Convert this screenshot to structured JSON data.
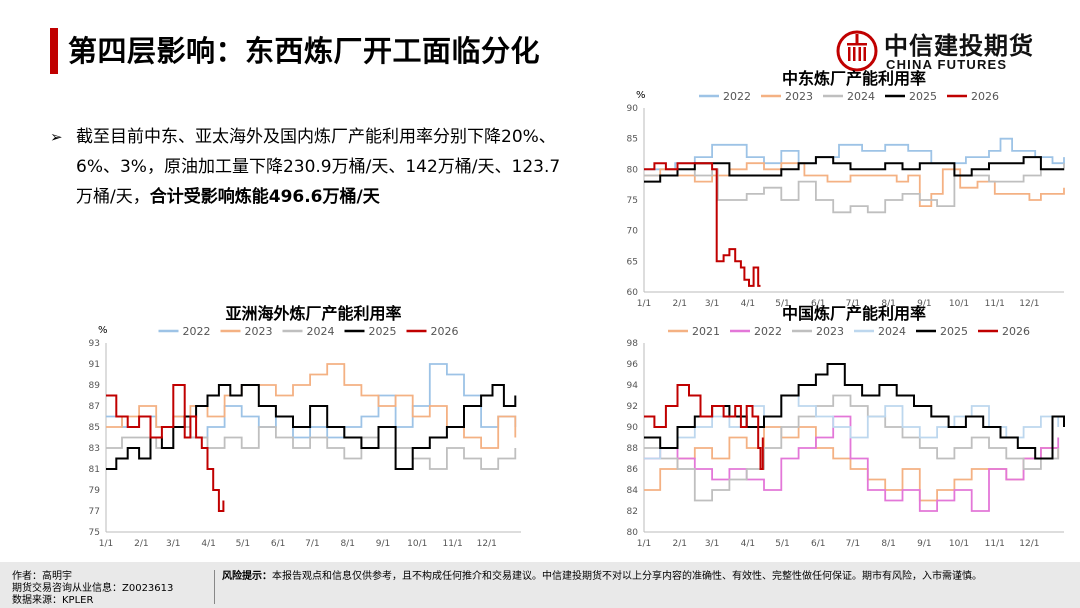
{
  "title": "第四层影响：东西炼厂开工面临分化",
  "logo": {
    "cn": "中信建投期货",
    "en": "CHINA FUTURES"
  },
  "bullet": {
    "normal": "截至目前中东、亚太海外及国内炼厂产能利用率分别下降20%、6%、3%，原油加工量下降230.9万桶/天、142万桶/天、123.7万桶/天，",
    "bold": "合计受影响炼能496.6万桶/天"
  },
  "footer": {
    "author": "作者：高明宇",
    "license": "期货交易咨询从业信息：Z0023613",
    "source": "数据来源：KPLER",
    "risk_label": "风险提示：",
    "risk_text": "本报告观点和信息仅供参考，且不构成任何推介和交易建议。中信建投期货不对以上分享内容的准确性、有效性、完整性做任何保证。期市有风险，入市需谨慎。"
  },
  "colors": {
    "accent": "#c00000",
    "2021": "#f4b183",
    "2022": "#9dc3e6",
    "2023": "#f4b183",
    "2024": "#bfbfbf",
    "2025": "#000000",
    "2026": "#c00000",
    "2022_cn": "#e377d8",
    "2024_cn": "#bdd7ee"
  },
  "chart_data": [
    {
      "id": "middle_east",
      "type": "line",
      "title": "中东炼厂产能利用率",
      "ylabel": "%",
      "ylim": [
        60,
        90
      ],
      "yticks": [
        60,
        65,
        70,
        75,
        80,
        85,
        90
      ],
      "x_ticks": [
        "1/1",
        "2/1",
        "3/1",
        "4/1",
        "5/1",
        "6/1",
        "7/1",
        "8/1",
        "9/1",
        "10/1",
        "11/1",
        "12/1"
      ],
      "series": [
        {
          "name": "2022",
          "color": "#9dc3e6",
          "x": [
            1,
            15,
            28,
            45,
            55,
            60,
            72,
            90,
            105,
            120,
            135,
            150,
            170,
            190,
            210,
            230,
            250,
            265,
            280,
            300,
            310,
            320,
            340,
            355,
            365
          ],
          "values": [
            80,
            80,
            81,
            82,
            82,
            84,
            84,
            82,
            81,
            83,
            81,
            82,
            84,
            83,
            84,
            83,
            81,
            81,
            82,
            83,
            85,
            83,
            82,
            81,
            82
          ]
        },
        {
          "name": "2023",
          "color": "#f4b183",
          "x": [
            1,
            15,
            30,
            45,
            60,
            75,
            90,
            105,
            120,
            140,
            160,
            180,
            200,
            220,
            230,
            240,
            250,
            260,
            275,
            290,
            305,
            320,
            335,
            345,
            365
          ],
          "values": [
            79,
            80,
            79,
            78,
            79,
            80,
            81,
            80,
            81,
            79,
            78,
            79,
            79,
            78,
            79,
            74,
            76,
            80,
            77,
            78,
            76,
            76,
            75,
            76,
            77
          ]
        },
        {
          "name": "2024",
          "color": "#bfbfbf",
          "x": [
            1,
            15,
            30,
            45,
            60,
            65,
            75,
            90,
            105,
            120,
            135,
            150,
            165,
            180,
            195,
            210,
            225,
            240,
            255,
            270,
            285,
            300,
            315,
            330,
            345,
            365
          ],
          "values": [
            79,
            79,
            80,
            79,
            80,
            75,
            75,
            76,
            77,
            75,
            78,
            75,
            73,
            74,
            73,
            75,
            76,
            75,
            74,
            79,
            79,
            78,
            78,
            79,
            80,
            81
          ]
        },
        {
          "name": "2025",
          "color": "#000000",
          "x": [
            1,
            15,
            30,
            45,
            60,
            75,
            90,
            105,
            120,
            135,
            150,
            165,
            180,
            195,
            210,
            225,
            240,
            255,
            270,
            285,
            300,
            315,
            330,
            345,
            365
          ],
          "values": [
            78,
            79,
            80,
            81,
            81,
            79,
            79,
            79,
            80,
            81,
            82,
            81,
            80,
            80,
            81,
            80,
            81,
            81,
            79,
            80,
            81,
            81,
            82,
            80,
            80
          ]
        },
        {
          "name": "2026",
          "color": "#c00000",
          "x": [
            1,
            10,
            20,
            30,
            40,
            50,
            55,
            60,
            64,
            70,
            75,
            80,
            85,
            88,
            92,
            96,
            100,
            102
          ],
          "values": [
            80,
            81,
            80,
            81,
            81,
            81,
            81,
            80,
            65,
            66,
            67,
            65,
            64,
            62,
            61,
            64,
            61,
            61
          ]
        }
      ]
    },
    {
      "id": "asia_pacific",
      "type": "line",
      "title": "亚洲海外炼厂产能利用率",
      "ylabel": "%",
      "ylim": [
        75,
        93
      ],
      "yticks": [
        75,
        77,
        79,
        81,
        83,
        85,
        87,
        89,
        91,
        93
      ],
      "x_ticks": [
        "1/1",
        "2/1",
        "3/1",
        "4/1",
        "5/1",
        "6/1",
        "7/1",
        "8/1",
        "9/1",
        "10/1",
        "11/1",
        "12/1"
      ],
      "series": [
        {
          "name": "2022",
          "color": "#9dc3e6",
          "x": [
            1,
            15,
            30,
            45,
            60,
            75,
            90,
            105,
            120,
            135,
            150,
            165,
            180,
            195,
            210,
            225,
            240,
            255,
            270,
            285,
            300,
            315,
            330,
            345,
            360
          ],
          "values": [
            86,
            85,
            86,
            85,
            86,
            84,
            85,
            87,
            86,
            85,
            86,
            84,
            85,
            84,
            85,
            86,
            88,
            85,
            87,
            91,
            90,
            88,
            85,
            86,
            85
          ]
        },
        {
          "name": "2023",
          "color": "#f4b183",
          "x": [
            1,
            15,
            30,
            45,
            60,
            75,
            90,
            105,
            120,
            135,
            150,
            165,
            180,
            195,
            210,
            225,
            240,
            255,
            270,
            285,
            300,
            315,
            330,
            345,
            360
          ],
          "values": [
            85,
            86,
            87,
            85,
            86,
            87,
            86,
            88,
            89,
            89,
            88,
            89,
            90,
            91,
            89,
            88,
            87,
            88,
            86,
            87,
            85,
            84,
            83,
            86,
            84
          ]
        },
        {
          "name": "2024",
          "color": "#bfbfbf",
          "x": [
            1,
            15,
            30,
            45,
            60,
            75,
            90,
            105,
            120,
            135,
            150,
            165,
            180,
            195,
            210,
            225,
            240,
            255,
            270,
            285,
            300,
            315,
            330,
            345,
            360
          ],
          "values": [
            83,
            84,
            84,
            83,
            85,
            84,
            83,
            84,
            83,
            85,
            84,
            83,
            84,
            83,
            82,
            84,
            83,
            83,
            82,
            81,
            83,
            82,
            81,
            82,
            83
          ]
        },
        {
          "name": "2025",
          "color": "#000000",
          "x": [
            1,
            10,
            20,
            30,
            40,
            50,
            60,
            70,
            80,
            90,
            100,
            110,
            120,
            135,
            150,
            165,
            180,
            195,
            210,
            225,
            240,
            255,
            270,
            285,
            300,
            315,
            330,
            340,
            350,
            360
          ],
          "values": [
            81,
            82,
            83,
            82,
            84,
            83,
            85,
            86,
            87,
            88,
            89,
            88,
            89,
            87,
            86,
            85,
            87,
            85,
            84,
            83,
            85,
            81,
            83,
            84,
            85,
            87,
            88,
            89,
            87,
            88
          ]
        },
        {
          "name": "2026",
          "color": "#c00000",
          "x": [
            1,
            10,
            20,
            30,
            40,
            50,
            60,
            70,
            75,
            80,
            85,
            90,
            95,
            100,
            102,
            104
          ],
          "values": [
            88,
            86,
            85,
            86,
            84,
            85,
            89,
            84,
            86,
            84,
            83,
            81,
            79,
            77,
            77,
            78
          ]
        }
      ]
    },
    {
      "id": "china",
      "type": "line",
      "title": "中国炼厂产能利用率",
      "ylabel": "",
      "ylim": [
        80,
        98
      ],
      "yticks": [
        80,
        82,
        84,
        86,
        88,
        90,
        92,
        94,
        96,
        98
      ],
      "x_ticks": [
        "1/1",
        "2/1",
        "3/1",
        "4/1",
        "5/1",
        "6/1",
        "7/1",
        "8/1",
        "9/1",
        "10/1",
        "11/1",
        "12/1"
      ],
      "series": [
        {
          "name": "2021",
          "color": "#f4b183",
          "x": [
            1,
            15,
            30,
            45,
            60,
            75,
            90,
            105,
            120,
            135,
            150,
            165,
            180,
            195,
            210,
            225,
            240,
            255,
            270,
            285,
            300,
            315,
            330,
            345,
            360
          ],
          "values": [
            84,
            86,
            87,
            88,
            87,
            89,
            88,
            90,
            89,
            90,
            88,
            87,
            86,
            85,
            84,
            86,
            83,
            84,
            85,
            86,
            86,
            85,
            87,
            88,
            87
          ]
        },
        {
          "name": "2022",
          "color": "#e377d8",
          "x": [
            1,
            15,
            30,
            45,
            60,
            75,
            90,
            105,
            120,
            135,
            150,
            165,
            180,
            195,
            210,
            225,
            240,
            255,
            270,
            285,
            300,
            315,
            330,
            345,
            360
          ],
          "values": [
            87,
            88,
            87,
            86,
            85,
            86,
            85,
            84,
            87,
            88,
            89,
            91,
            87,
            84,
            83,
            84,
            82,
            83,
            84,
            82,
            86,
            85,
            87,
            88,
            89
          ]
        },
        {
          "name": "2023",
          "color": "#bfbfbf",
          "x": [
            1,
            15,
            30,
            45,
            60,
            75,
            90,
            105,
            120,
            135,
            150,
            165,
            180,
            195,
            210,
            225,
            240,
            255,
            270,
            285,
            300,
            315,
            330,
            345,
            360
          ],
          "values": [
            88,
            87,
            86,
            83,
            84,
            85,
            86,
            88,
            90,
            91,
            92,
            93,
            92,
            91,
            90,
            89,
            88,
            87,
            88,
            89,
            88,
            87,
            86,
            87,
            88
          ]
        },
        {
          "name": "2024",
          "color": "#bdd7ee",
          "x": [
            1,
            15,
            30,
            45,
            60,
            75,
            90,
            105,
            120,
            135,
            150,
            165,
            180,
            195,
            210,
            225,
            240,
            255,
            270,
            285,
            300,
            315,
            330,
            345,
            360
          ],
          "values": [
            87,
            88,
            89,
            90,
            91,
            90,
            92,
            91,
            93,
            92,
            91,
            90,
            89,
            91,
            92,
            90,
            89,
            90,
            91,
            92,
            90,
            89,
            90,
            91,
            90
          ]
        },
        {
          "name": "2025",
          "color": "#000000",
          "x": [
            1,
            15,
            30,
            45,
            60,
            75,
            90,
            105,
            120,
            135,
            150,
            160,
            175,
            190,
            205,
            220,
            235,
            250,
            265,
            280,
            295,
            310,
            325,
            340,
            355,
            365
          ],
          "values": [
            89,
            88,
            90,
            91,
            92,
            91,
            90,
            91,
            93,
            94,
            95,
            96,
            94,
            93,
            94,
            93,
            92,
            91,
            90,
            91,
            90,
            89,
            88,
            87,
            91,
            90
          ]
        },
        {
          "name": "2026",
          "color": "#c00000",
          "x": [
            1,
            10,
            20,
            30,
            40,
            50,
            60,
            70,
            80,
            85,
            90,
            95,
            100,
            102,
            104
          ],
          "values": [
            91,
            90,
            92,
            94,
            93,
            91,
            92,
            91,
            92,
            90,
            92,
            91,
            88,
            86,
            89
          ]
        }
      ]
    }
  ]
}
